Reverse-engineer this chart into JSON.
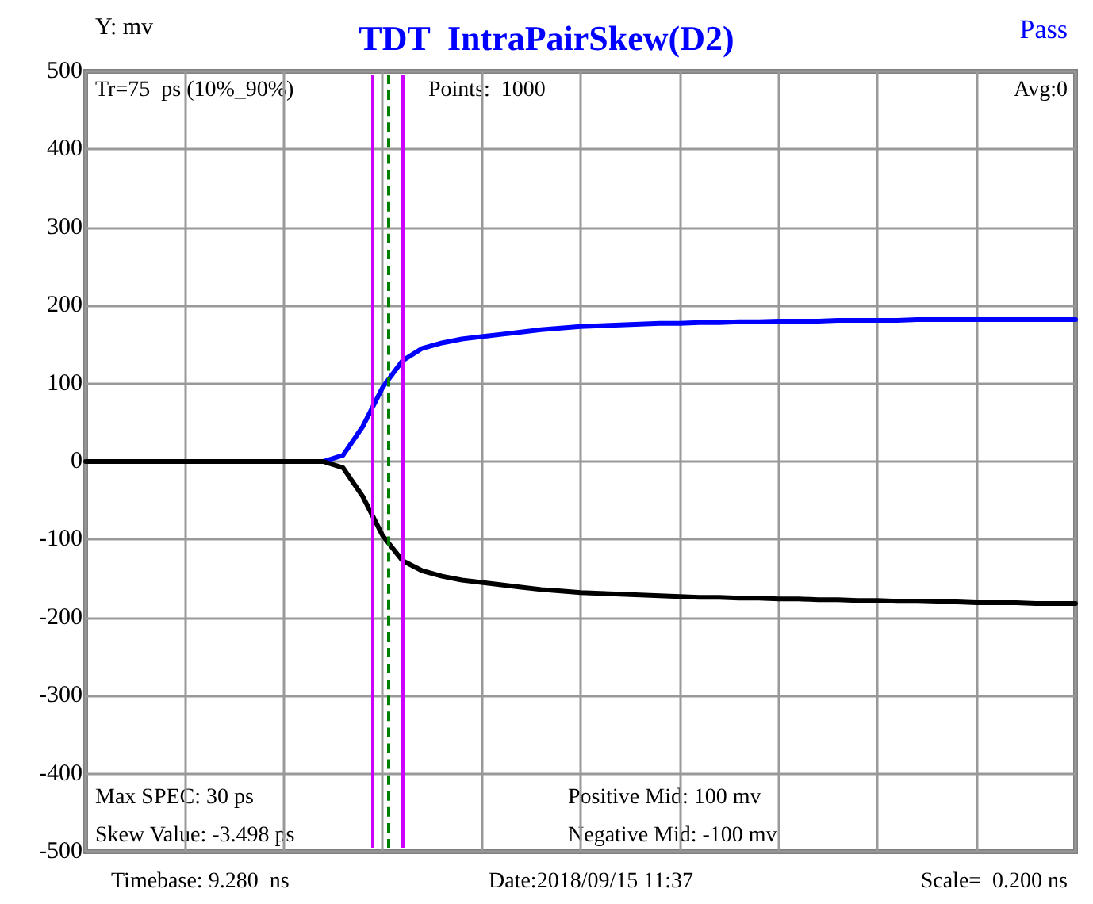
{
  "chart_data": {
    "type": "line",
    "title": "TDT  IntraPairSkew(D2)",
    "subtitle": "Pass",
    "ylabel": "Y: mv",
    "categories": [
      null,
      null,
      null,
      null,
      null,
      null,
      null,
      null,
      null,
      null,
      null,
      null,
      null,
      null,
      null,
      null,
      null,
      null,
      null,
      null,
      null,
      null,
      null,
      null,
      null,
      null,
      null,
      null,
      null,
      null,
      null,
      null,
      null,
      null,
      null,
      null,
      null,
      null,
      null,
      null,
      null,
      null,
      null,
      null,
      null,
      null,
      null,
      null,
      null,
      null,
      null
    ],
    "ylim": [
      -500,
      500
    ],
    "yticks": [
      -500,
      -400,
      -300,
      -200,
      -100,
      0,
      100,
      200,
      300,
      400,
      500
    ],
    "tick_labels": "y",
    "grid": true,
    "marker": "none",
    "line_style": "solid",
    "series": [
      {
        "color": "#0000ff",
        "values": [
          null,
          null,
          null,
          null,
          null,
          null,
          null,
          null,
          null,
          null,
          0,
          0,
          0,
          8,
          45,
          95,
          129,
          145,
          152,
          157,
          160,
          163,
          166,
          169,
          171,
          173,
          174,
          175,
          176,
          177,
          177,
          178,
          178,
          179,
          179,
          180,
          180,
          180,
          181,
          181,
          181,
          181,
          182,
          182,
          182,
          182,
          182,
          182,
          182,
          182,
          182
        ]
      },
      {
        "color": "#000000",
        "values": [
          0,
          0,
          0,
          0,
          0,
          0,
          0,
          0,
          0,
          0,
          0,
          0,
          0,
          -8,
          -45,
          -95,
          -127,
          -140,
          -147,
          -152,
          -155,
          -158,
          -161,
          -164,
          -166,
          -168,
          -169,
          -170,
          -171,
          -172,
          -173,
          -174,
          -174,
          -175,
          -175,
          -176,
          -176,
          -177,
          -177,
          -178,
          -178,
          -179,
          -179,
          -180,
          -180,
          -181,
          -181,
          -181,
          -182,
          -182,
          -182
        ]
      }
    ],
    "annotations": [
      "Tr=75  ps (10%_90%)",
      "Points:  1000",
      "Avg:0",
      "Max SPEC: 30 ps",
      "Skew Value: -3.498 ps",
      "Positive Mid: 100 mv",
      "Negative Mid: -100 mv",
      "Date:2018/09/15 11:37",
      "Timebase: 9.280  ns",
      "Scale=  0.200 ns"
    ]
  }
}
